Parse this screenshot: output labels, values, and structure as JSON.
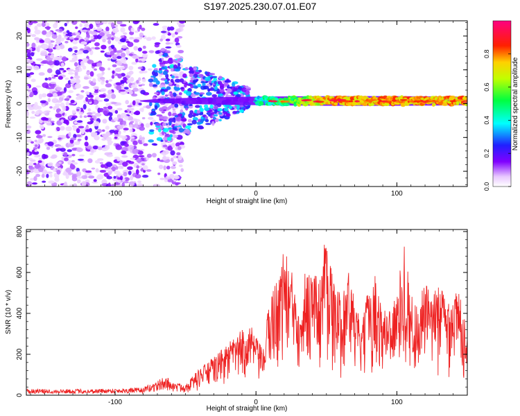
{
  "title": "S197.2025.230.07.01.E07",
  "colors": {
    "snr_line": "#ee2222",
    "axis": "#000000"
  },
  "chart_data": [
    {
      "type": "heatmap",
      "title": "S197.2025.230.07.01.E07",
      "xlabel": "Height of straight line (km)",
      "ylabel": "Frequency (Hz)",
      "xlim": [
        -163,
        150
      ],
      "ylim": [
        -24.5,
        24.5
      ],
      "xticks": [
        -100,
        0,
        100
      ],
      "xtick_labels": [
        "-100",
        "0",
        "100"
      ],
      "yticks": [
        -20,
        -10,
        0,
        10,
        20
      ],
      "ytick_labels": [
        "-20",
        "-10",
        "0",
        "10",
        "20"
      ],
      "colorbar": {
        "label": "Normalized spectral amplitude",
        "range": [
          0,
          1
        ],
        "ticks": [
          0.0,
          0.2,
          0.4,
          0.6,
          0.8
        ],
        "tick_labels": [
          "0.0",
          "0.2",
          "0.4",
          "0.6",
          "0.8"
        ],
        "colormap": "rainbow (white-violet-blue-cyan-green-yellow-red-magenta)"
      },
      "features": {
        "noise_region_km": [
          -163,
          -60
        ],
        "transition_region_km": [
          -75,
          -5
        ],
        "coherent_band_km": [
          0,
          150
        ],
        "coherent_band_center_hz": 0.8,
        "coherent_band_halfwidth_hz": 1.2
      }
    },
    {
      "type": "line",
      "xlabel": "Height of straight line (km)",
      "ylabel": "SNR (10 * v/v)",
      "xlim": [
        -163,
        150
      ],
      "ylim": [
        0,
        810
      ],
      "xticks": [
        -100,
        0,
        100
      ],
      "xtick_labels": [
        "-100",
        "0",
        "100"
      ],
      "yticks": [
        0,
        200,
        400,
        600,
        800
      ],
      "ytick_labels": [
        "0",
        "200",
        "400",
        "600",
        "800"
      ],
      "series": [
        {
          "name": "SNR",
          "envelope_x": [
            -163,
            -120,
            -80,
            -65,
            -60,
            -50,
            -40,
            -30,
            -20,
            -10,
            -5,
            0,
            5,
            10,
            15,
            20,
            25,
            30,
            35,
            40,
            45,
            50,
            55,
            60,
            65,
            70,
            75,
            80,
            85,
            90,
            95,
            100,
            105,
            110,
            115,
            120,
            125,
            130,
            135,
            140,
            145,
            150
          ],
          "envelope_y": [
            20,
            20,
            25,
            60,
            55,
            50,
            120,
            170,
            230,
            290,
            330,
            260,
            200,
            460,
            520,
            660,
            560,
            470,
            560,
            580,
            510,
            780,
            500,
            450,
            580,
            430,
            300,
            500,
            540,
            370,
            420,
            440,
            700,
            450,
            400,
            520,
            420,
            530,
            430,
            480,
            450,
            300
          ]
        }
      ]
    }
  ]
}
